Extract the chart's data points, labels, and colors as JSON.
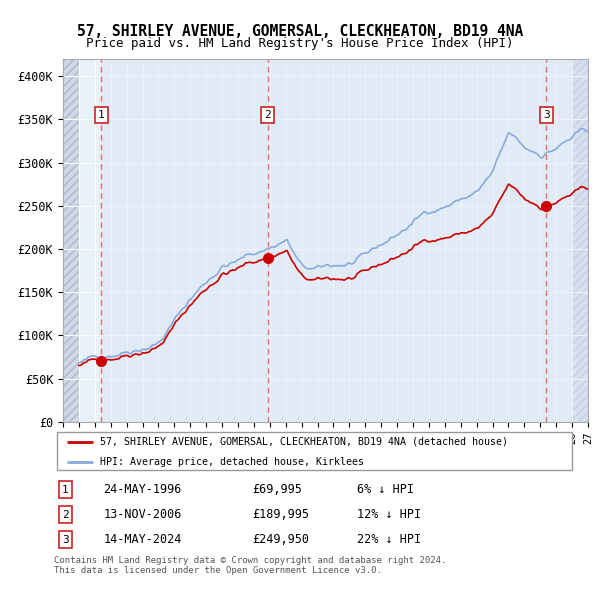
{
  "title": "57, SHIRLEY AVENUE, GOMERSAL, CLECKHEATON, BD19 4NA",
  "subtitle": "Price paid vs. HM Land Registry's House Price Index (HPI)",
  "sale_dates_float": [
    1996.39,
    2006.87,
    2024.37
  ],
  "sale_prices": [
    69995,
    189995,
    249950
  ],
  "sale_labels": [
    "1",
    "2",
    "3"
  ],
  "legend_property": "57, SHIRLEY AVENUE, GOMERSAL, CLECKHEATON, BD19 4NA (detached house)",
  "legend_hpi": "HPI: Average price, detached house, Kirklees",
  "table_entries": [
    {
      "num": "1",
      "date": "24-MAY-1996",
      "price": "£69,995",
      "hpi": "6% ↓ HPI"
    },
    {
      "num": "2",
      "date": "13-NOV-2006",
      "price": "£189,995",
      "hpi": "12% ↓ HPI"
    },
    {
      "num": "3",
      "date": "14-MAY-2024",
      "price": "£249,950",
      "hpi": "22% ↓ HPI"
    }
  ],
  "footer": "Contains HM Land Registry data © Crown copyright and database right 2024.\nThis data is licensed under the Open Government Licence v3.0.",
  "ylim": [
    0,
    420000
  ],
  "yticks": [
    0,
    50000,
    100000,
    150000,
    200000,
    250000,
    300000,
    350000,
    400000
  ],
  "ytick_labels": [
    "£0",
    "£50K",
    "£100K",
    "£150K",
    "£200K",
    "£250K",
    "£300K",
    "£350K",
    "£400K"
  ],
  "xmin": 1994.0,
  "xmax": 2027.0,
  "property_color": "#cc0000",
  "hpi_color": "#88aadd",
  "dashed_color": "#ee5555",
  "bg_plot": "#e8f0f8",
  "bg_hatch_color": "#d0d8e8",
  "shade_color": "#dce8f4",
  "grid_color": "#ffffff"
}
